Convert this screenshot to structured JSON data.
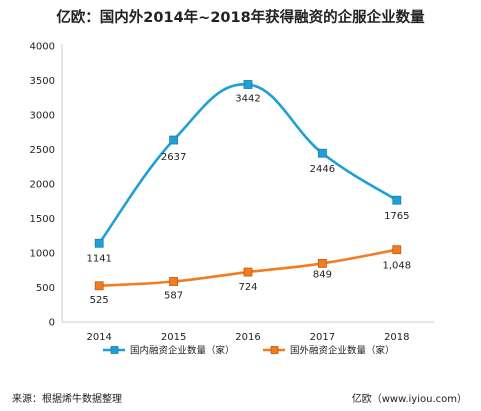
{
  "chart_data": {
    "type": "line",
    "title": "亿欧：国内外2014年~2018年获得融资的企服企业数量",
    "categories": [
      "2014",
      "2015",
      "2016",
      "2017",
      "2018"
    ],
    "ylim": [
      0,
      4000
    ],
    "yticks": [
      0,
      500,
      1000,
      1500,
      2000,
      2500,
      3000,
      3500,
      4000
    ],
    "grid": false,
    "legend_position": "bottom",
    "series": [
      {
        "name": "国内融资企业数量（家）",
        "values": [
          1141,
          2637,
          3442,
          2446,
          1765
        ],
        "labels": [
          "1141",
          "2637",
          "3442",
          "2446",
          "1765"
        ],
        "color": "#1f9fd6",
        "marker": "square"
      },
      {
        "name": "国外融资企业数量（家）",
        "values": [
          525,
          587,
          724,
          849,
          1048
        ],
        "labels": [
          "525",
          "587",
          "724",
          "849",
          "1,048"
        ],
        "color": "#f47c20",
        "marker": "square"
      }
    ]
  },
  "footer": {
    "source": "来源：根据烯牛数据整理",
    "brand": "亿欧（www.iyiou.com）"
  }
}
